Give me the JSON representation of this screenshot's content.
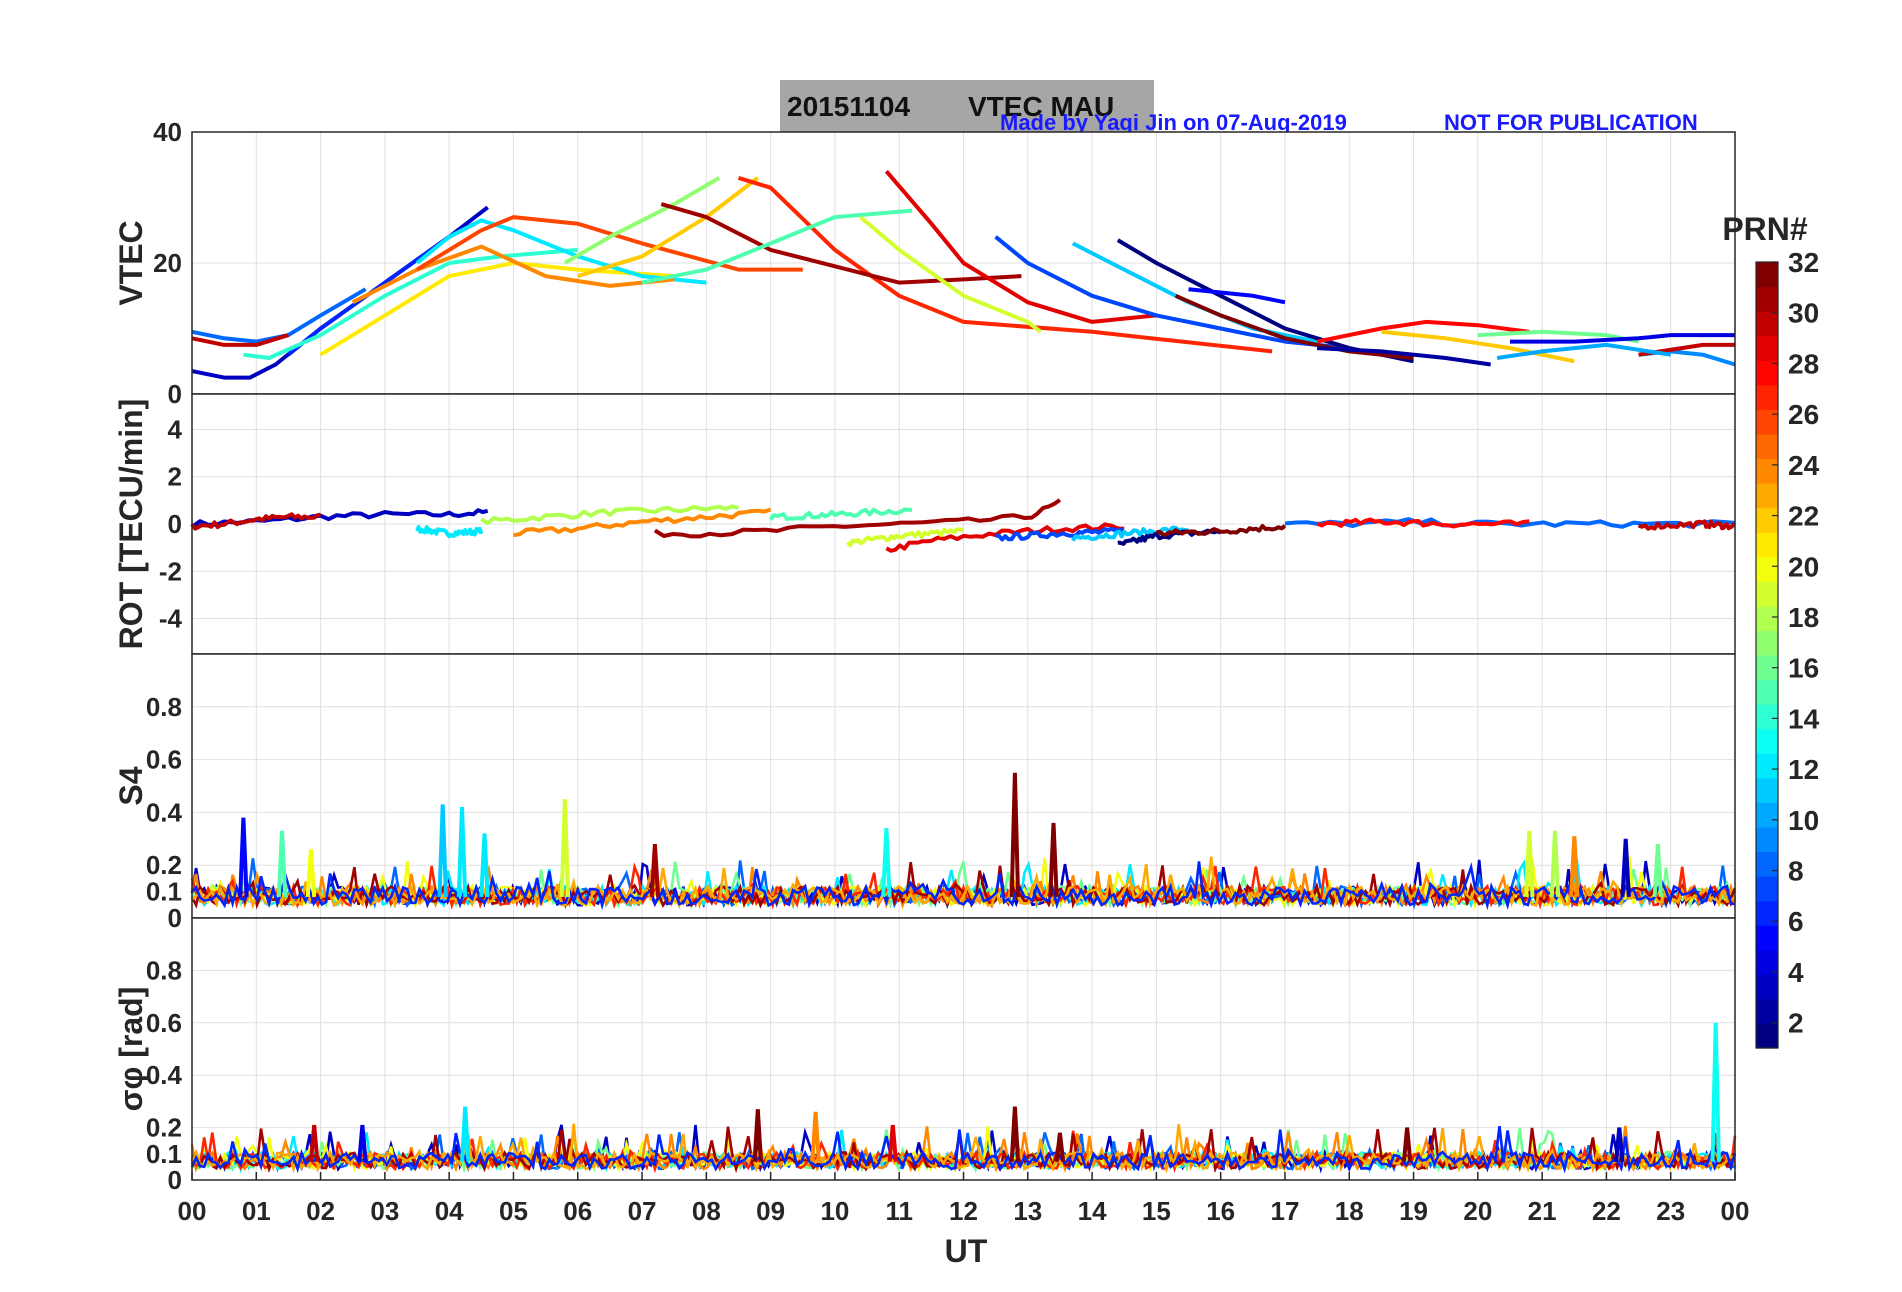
{
  "title": {
    "date": "20151104",
    "label": "VTEC  MAU",
    "credit": "Made by Yaqi Jin on 07-Aug-2019",
    "notice": "NOT FOR PUBLICATION"
  },
  "colors": {
    "banner": "#a6a6a6",
    "credit": "#1a1aff",
    "grid": "#e0e0e0",
    "axis": "#262626"
  },
  "chart_data": [
    {
      "type": "line",
      "panel": "vtec",
      "ylabel": "VTEC",
      "ylim": [
        0,
        40
      ],
      "yticks": [
        0,
        20,
        40
      ],
      "ytick_labels": [
        "0",
        "20",
        "40"
      ],
      "series": [
        {
          "prn": 3,
          "x": [
            0,
            0.5,
            0.9,
            1.3,
            2,
            3,
            4,
            4.6
          ],
          "y": [
            3.5,
            2.5,
            2.5,
            4.5,
            10,
            17,
            24,
            28.5
          ]
        },
        {
          "prn": 8,
          "x": [
            0,
            0.5,
            1,
            1.5,
            2,
            2.7
          ],
          "y": [
            9.5,
            8.5,
            8,
            9,
            12,
            16
          ]
        },
        {
          "prn": 6,
          "x": [
            1.5,
            2,
            3,
            4,
            4.4
          ],
          "y": [
            6,
            10,
            17,
            24,
            26
          ]
        },
        {
          "prn": 30,
          "x": [
            0,
            0.5,
            1,
            1.5
          ],
          "y": [
            8.5,
            7.5,
            7.5,
            9
          ]
        },
        {
          "prn": 14,
          "x": [
            0.8,
            1.2,
            2,
            3,
            4,
            4.8,
            6
          ],
          "y": [
            6,
            5.5,
            9,
            15,
            20,
            21,
            22
          ]
        },
        {
          "prn": 21,
          "x": [
            2,
            3,
            4,
            5,
            6,
            7.5
          ],
          "y": [
            6,
            12,
            18,
            20,
            19,
            18
          ]
        },
        {
          "prn": 12,
          "x": [
            3.5,
            4,
            4.5,
            5,
            6,
            7,
            8
          ],
          "y": [
            20,
            24,
            26.5,
            25,
            21,
            18,
            17
          ]
        },
        {
          "prn": 24,
          "x": [
            2.5,
            3.5,
            4.5,
            5.5,
            6.5,
            7.5
          ],
          "y": [
            14,
            19,
            22.5,
            18,
            16.5,
            17.5
          ]
        },
        {
          "prn": 26,
          "x": [
            3.5,
            4.5,
            5,
            6,
            7,
            8.5,
            9.5
          ],
          "y": [
            19,
            25,
            27,
            26,
            23,
            19,
            19
          ]
        },
        {
          "prn": 17,
          "x": [
            5.8,
            6.5,
            7.5,
            8.2
          ],
          "y": [
            20,
            24,
            29,
            33
          ]
        },
        {
          "prn": 22,
          "x": [
            6,
            7,
            8,
            8.8
          ],
          "y": [
            18,
            21,
            27,
            33
          ]
        },
        {
          "prn": 27,
          "x": [
            8.5,
            9,
            10,
            11,
            12,
            14,
            16.8
          ],
          "y": [
            33,
            31.5,
            22,
            15,
            11,
            9.5,
            6.5
          ]
        },
        {
          "prn": 31,
          "x": [
            7.3,
            8,
            9,
            10,
            11,
            12,
            12.9
          ],
          "y": [
            29,
            27,
            22,
            19.5,
            17,
            17.5,
            18
          ]
        },
        {
          "prn": 29,
          "x": [
            10.8,
            11.5,
            12,
            13,
            14,
            15
          ],
          "y": [
            34,
            26,
            20,
            14,
            11,
            12
          ]
        },
        {
          "prn": 15,
          "x": [
            7,
            8,
            9,
            10,
            11.2
          ],
          "y": [
            17,
            19,
            23,
            27,
            28
          ]
        },
        {
          "prn": 19,
          "x": [
            10.4,
            11,
            12,
            13,
            13.2
          ],
          "y": [
            27,
            22,
            15,
            11,
            9.5
          ]
        },
        {
          "prn": 7,
          "x": [
            12.5,
            13,
            14,
            15,
            16,
            17,
            18
          ],
          "y": [
            24,
            20,
            15,
            12,
            10,
            8,
            7
          ]
        },
        {
          "prn": 11,
          "x": [
            13.7,
            14.5,
            15.5,
            16.5,
            17.5
          ],
          "y": [
            23,
            19,
            14,
            10,
            8
          ]
        },
        {
          "prn": 1,
          "x": [
            14.4,
            15,
            16,
            17,
            18,
            19
          ],
          "y": [
            23.5,
            20,
            15,
            10,
            7,
            5
          ]
        },
        {
          "prn": 5,
          "x": [
            15.5,
            16.5,
            17
          ],
          "y": [
            16,
            15,
            14
          ]
        },
        {
          "prn": 32,
          "x": [
            15.3,
            16,
            17,
            18,
            19
          ],
          "y": [
            15,
            12,
            8.5,
            6.5,
            5.5
          ]
        },
        {
          "prn": 28,
          "x": [
            17.5,
            18.5,
            19.2,
            20,
            20.8
          ],
          "y": [
            8,
            10,
            11,
            10.5,
            9.5
          ]
        },
        {
          "prn": 22,
          "x": [
            18.5,
            19.5,
            20.5,
            21.5
          ],
          "y": [
            9.5,
            8.5,
            7,
            5
          ]
        },
        {
          "prn": 16,
          "x": [
            20,
            21,
            22,
            22.5
          ],
          "y": [
            9,
            9.5,
            9,
            8
          ]
        },
        {
          "prn": 4,
          "x": [
            20.5,
            21.5,
            22.5,
            23,
            24
          ],
          "y": [
            8,
            8,
            8.5,
            9,
            9
          ]
        },
        {
          "prn": 9,
          "x": [
            22.5,
            23,
            23.5,
            24
          ],
          "y": [
            6,
            6.5,
            6,
            4.5
          ]
        },
        {
          "prn": 30,
          "x": [
            22.5,
            23.5,
            24
          ],
          "y": [
            6,
            7.5,
            7.5
          ]
        },
        {
          "prn": 2,
          "x": [
            17.5,
            18.5,
            19.5,
            20.2
          ],
          "y": [
            7,
            6.5,
            5.5,
            4.5
          ]
        },
        {
          "prn": 10,
          "x": [
            20.3,
            21,
            22,
            23
          ],
          "y": [
            5.5,
            6.5,
            7.5,
            6
          ]
        }
      ]
    },
    {
      "type": "line",
      "panel": "rot",
      "ylabel": "ROT [TECU/min]",
      "ylim": [
        -5.5,
        5.5
      ],
      "yticks": [
        -4,
        -2,
        0,
        2,
        4
      ],
      "ytick_labels": [
        "-4",
        "-2",
        "0",
        "2",
        "4"
      ],
      "series": [
        {
          "prn": 3,
          "x": [
            0,
            1,
            2,
            3,
            4,
            4.6
          ],
          "y": [
            0,
            0.1,
            0.3,
            0.4,
            0.4,
            0.5
          ]
        },
        {
          "prn": 30,
          "x": [
            0,
            0.5,
            1,
            1.5,
            2
          ],
          "y": [
            -0.1,
            0,
            0.2,
            0.3,
            0.3
          ]
        },
        {
          "prn": 12,
          "x": [
            3.5,
            4,
            4.5
          ],
          "y": [
            -0.2,
            -0.4,
            -0.3
          ]
        },
        {
          "prn": 18,
          "x": [
            4.5,
            5.5,
            6.5,
            7.5,
            8.5
          ],
          "y": [
            0.1,
            0.3,
            0.5,
            0.6,
            0.7
          ]
        },
        {
          "prn": 24,
          "x": [
            5,
            6,
            7,
            8,
            9
          ],
          "y": [
            -0.4,
            -0.2,
            0.1,
            0.3,
            0.5
          ]
        },
        {
          "prn": 15,
          "x": [
            9,
            10,
            11.2
          ],
          "y": [
            0.3,
            0.4,
            0.6
          ]
        },
        {
          "prn": 31,
          "x": [
            7.2,
            8,
            9,
            10,
            11,
            12,
            13,
            13.5
          ],
          "y": [
            -0.4,
            -0.4,
            -0.3,
            -0.1,
            0,
            0.1,
            0.3,
            0.9
          ]
        },
        {
          "prn": 29,
          "x": [
            10.8,
            11.5,
            12.5,
            13.5,
            14.5
          ],
          "y": [
            -1.1,
            -0.7,
            -0.4,
            -0.2,
            -0.1
          ]
        },
        {
          "prn": 19,
          "x": [
            10.2,
            11,
            12
          ],
          "y": [
            -0.8,
            -0.5,
            -0.3
          ]
        },
        {
          "prn": 7,
          "x": [
            12.5,
            13.5,
            14.5
          ],
          "y": [
            -0.6,
            -0.4,
            -0.3
          ]
        },
        {
          "prn": 11,
          "x": [
            13.7,
            14.5,
            15.5
          ],
          "y": [
            -0.6,
            -0.4,
            -0.2
          ]
        },
        {
          "prn": 1,
          "x": [
            14.4,
            15,
            16
          ],
          "y": [
            -0.9,
            -0.5,
            -0.3
          ]
        },
        {
          "prn": 32,
          "x": [
            15,
            16,
            17
          ],
          "y": [
            -0.4,
            -0.3,
            -0.1
          ]
        },
        {
          "prn": 8,
          "x": [
            17,
            18,
            19,
            20,
            21,
            22,
            23,
            24
          ],
          "y": [
            0,
            0,
            0.1,
            0,
            0,
            0,
            0,
            0
          ]
        },
        {
          "prn": 28,
          "x": [
            17.5,
            18.5,
            19.5,
            20.8
          ],
          "y": [
            0,
            0.1,
            0,
            0
          ]
        },
        {
          "prn": 30,
          "x": [
            22.5,
            23.5,
            24
          ],
          "y": [
            -0.1,
            0,
            -0.1
          ]
        }
      ]
    },
    {
      "type": "line",
      "panel": "s4",
      "ylabel": "S4",
      "ylim": [
        0,
        1
      ],
      "yticks": [
        0,
        0.1,
        0.2,
        0.4,
        0.6,
        0.8
      ],
      "ytick_labels": [
        "0",
        "0.1",
        "0.2",
        "0.4",
        "0.6",
        "0.8"
      ],
      "peaks": [
        {
          "prn": 5,
          "x": 0.8,
          "y": 0.38
        },
        {
          "prn": 15,
          "x": 1.4,
          "y": 0.33
        },
        {
          "prn": 20,
          "x": 1.85,
          "y": 0.26
        },
        {
          "prn": 11,
          "x": 3.9,
          "y": 0.43
        },
        {
          "prn": 12,
          "x": 4.2,
          "y": 0.42
        },
        {
          "prn": 12,
          "x": 4.55,
          "y": 0.32
        },
        {
          "prn": 19,
          "x": 5.8,
          "y": 0.45
        },
        {
          "prn": 31,
          "x": 7.2,
          "y": 0.28
        },
        {
          "prn": 32,
          "x": 12.8,
          "y": 0.55
        },
        {
          "prn": 32,
          "x": 13.4,
          "y": 0.36
        },
        {
          "prn": 13,
          "x": 10.8,
          "y": 0.34
        },
        {
          "prn": 19,
          "x": 20.8,
          "y": 0.33
        },
        {
          "prn": 18,
          "x": 21.2,
          "y": 0.33
        },
        {
          "prn": 24,
          "x": 21.5,
          "y": 0.31
        },
        {
          "prn": 3,
          "x": 22.3,
          "y": 0.3
        },
        {
          "prn": 16,
          "x": 22.8,
          "y": 0.28
        }
      ],
      "baseline": 0.08
    },
    {
      "type": "line",
      "panel": "sigma_phi",
      "ylabel": "σφ [rad]",
      "ylim": [
        0,
        1
      ],
      "yticks": [
        0,
        0.1,
        0.2,
        0.4,
        0.6,
        0.8
      ],
      "ytick_labels": [
        "0",
        "0.1",
        "0.2",
        "0.4",
        "0.6",
        "0.8"
      ],
      "peaks": [
        {
          "prn": 30,
          "x": 1.9,
          "y": 0.21
        },
        {
          "prn": 4,
          "x": 2.65,
          "y": 0.21
        },
        {
          "prn": 12,
          "x": 4.25,
          "y": 0.28
        },
        {
          "prn": 32,
          "x": 8.8,
          "y": 0.27
        },
        {
          "prn": 24,
          "x": 9.7,
          "y": 0.26
        },
        {
          "prn": 29,
          "x": 10.9,
          "y": 0.21
        },
        {
          "prn": 32,
          "x": 12.8,
          "y": 0.28
        },
        {
          "prn": 32,
          "x": 13.5,
          "y": 0.18
        },
        {
          "prn": 32,
          "x": 18.9,
          "y": 0.2
        },
        {
          "prn": 3,
          "x": 22.2,
          "y": 0.2
        },
        {
          "prn": 13,
          "x": 23.7,
          "y": 0.6
        }
      ],
      "baseline": 0.07
    }
  ],
  "x_axis": {
    "label": "UT",
    "xlim": [
      0,
      24
    ],
    "tick_labels": [
      "00",
      "01",
      "02",
      "03",
      "04",
      "05",
      "06",
      "07",
      "08",
      "09",
      "10",
      "11",
      "12",
      "13",
      "14",
      "15",
      "16",
      "17",
      "18",
      "19",
      "20",
      "21",
      "22",
      "23",
      "00"
    ]
  },
  "colorbar": {
    "label": "PRN#",
    "range": [
      1,
      32
    ],
    "tick_values": [
      2,
      4,
      6,
      8,
      10,
      12,
      14,
      16,
      18,
      20,
      22,
      24,
      26,
      28,
      30,
      32
    ],
    "tick_labels": [
      "2",
      "4",
      "6",
      "8",
      "10",
      "12",
      "14",
      "16",
      "18",
      "20",
      "22",
      "24",
      "26",
      "28",
      "30",
      "32"
    ]
  }
}
